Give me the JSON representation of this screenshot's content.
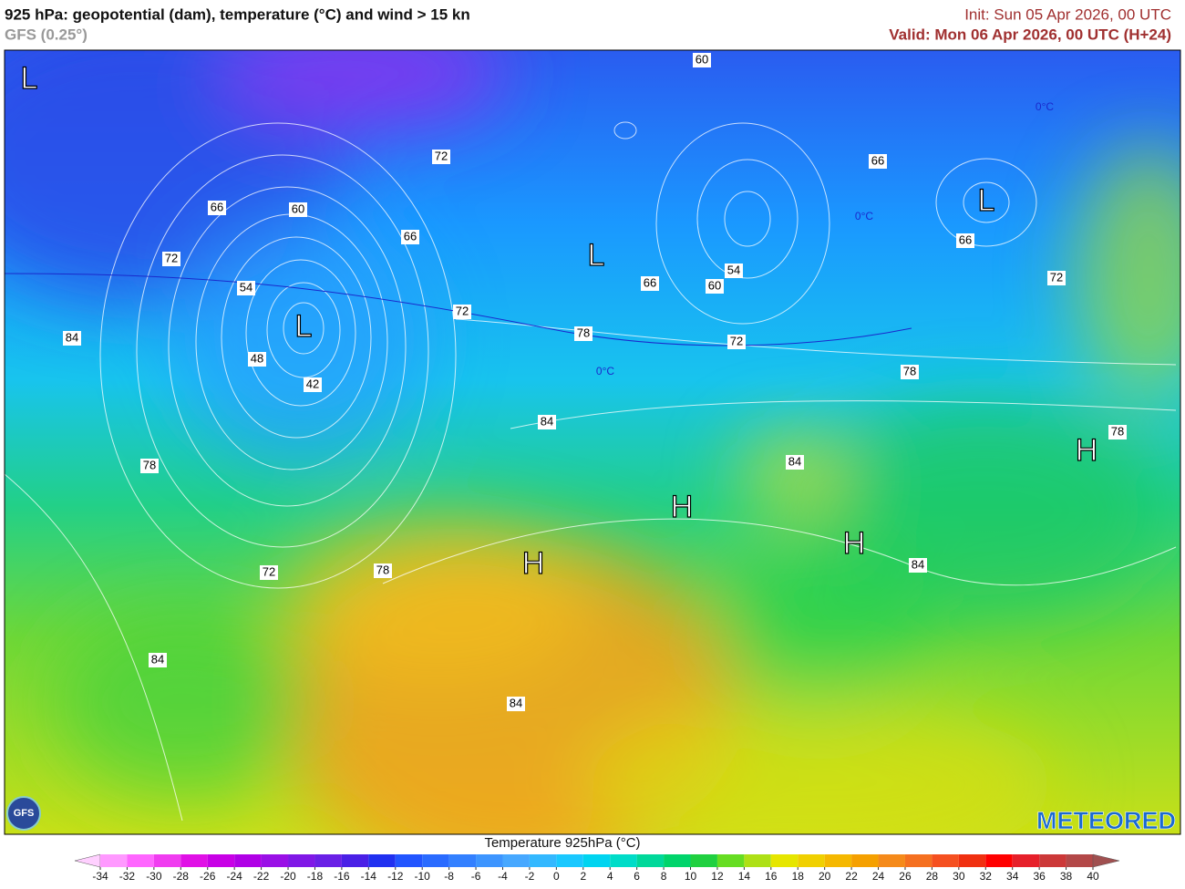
{
  "header": {
    "title": "925 hPa: geopotential (dam), temperature (°C) and wind > 15 kn",
    "model": "GFS (0.25°)",
    "init": "Init: Sun 05 Apr 2026, 00 UTC",
    "valid": "Valid: Mon 06 Apr 2026, 00 UTC (H+24)"
  },
  "map": {
    "contour_labels": [
      60,
      72,
      66,
      66,
      60,
      66,
      66,
      72,
      54,
      54,
      66,
      60,
      72,
      72,
      78,
      84,
      72,
      48,
      78,
      42,
      84,
      78,
      84,
      78,
      84,
      72,
      78,
      84,
      84
    ],
    "pressure_centers": [
      "L",
      "L",
      "L",
      "L",
      "H",
      "H",
      "H",
      "H"
    ],
    "isotherm_labels": [
      "0°C",
      "0°C",
      "0°C"
    ]
  },
  "colorbar": {
    "title": "Temperature 925hPa (°C)",
    "ticks": [
      -34,
      -32,
      -30,
      -28,
      -26,
      -24,
      -22,
      -20,
      -18,
      -16,
      -14,
      -12,
      -10,
      -8,
      -6,
      -4,
      -2,
      0,
      2,
      4,
      6,
      8,
      10,
      12,
      14,
      16,
      18,
      20,
      22,
      24,
      26,
      28,
      30,
      32,
      34,
      36,
      38,
      40
    ],
    "colors": [
      "#ffd0ff",
      "#ff99ff",
      "#ff66ff",
      "#f03cf0",
      "#e010e6",
      "#c800e6",
      "#b000e6",
      "#9a10e6",
      "#8018e6",
      "#6a20e6",
      "#4a20e6",
      "#2030f0",
      "#2255ff",
      "#2a6bff",
      "#3380ff",
      "#3d95ff",
      "#47a8ff",
      "#33b8ff",
      "#1ac8ff",
      "#00d4f0",
      "#00dcc8",
      "#00d89a",
      "#00d46b",
      "#20d040",
      "#66dd22",
      "#aee016",
      "#e6e600",
      "#f0d000",
      "#f5b800",
      "#f5a000",
      "#f58a1a",
      "#f57020",
      "#f55020",
      "#f03010",
      "#ff0000",
      "#e6202a",
      "#cc3838",
      "#b34848",
      "#a05050"
    ]
  },
  "logos": {
    "brand": "METEORED",
    "badge": "GFS"
  }
}
